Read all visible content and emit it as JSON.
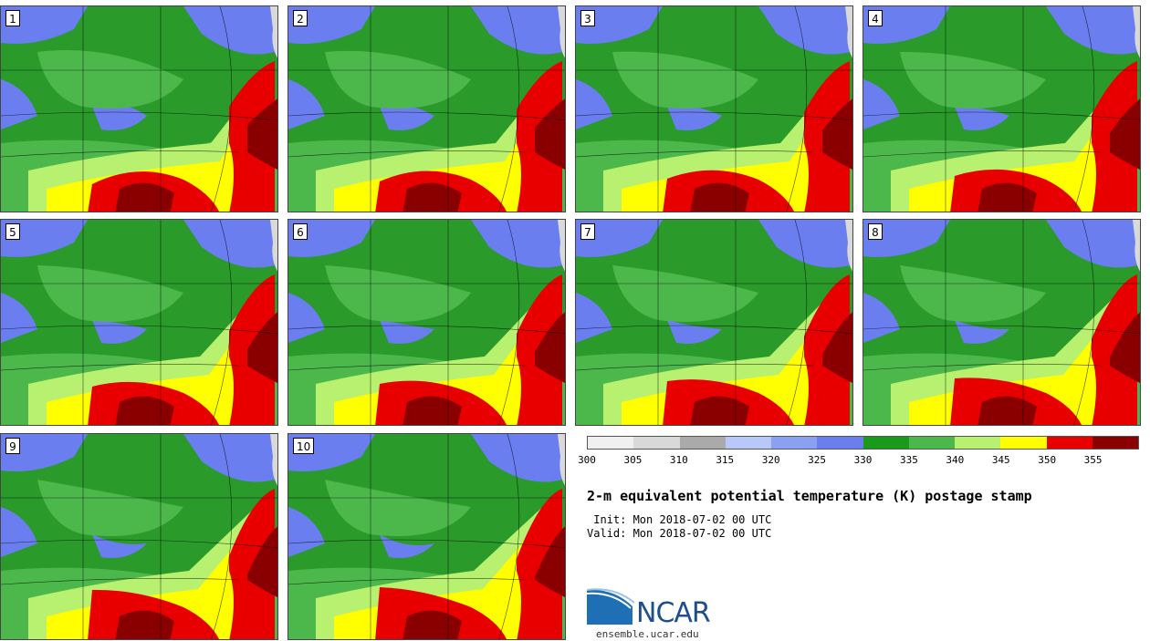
{
  "panels": [
    {
      "label": "1"
    },
    {
      "label": "2"
    },
    {
      "label": "3"
    },
    {
      "label": "4"
    },
    {
      "label": "5"
    },
    {
      "label": "6"
    },
    {
      "label": "7"
    },
    {
      "label": "8"
    },
    {
      "label": "9"
    },
    {
      "label": "10"
    }
  ],
  "colorbar": {
    "colors": [
      "#f0f0f0",
      "#d9d9d9",
      "#aaaaaa",
      "#b8c8f8",
      "#8aa0f0",
      "#6a7ef0",
      "#1a9a1a",
      "#4cb84c",
      "#b8f070",
      "#ffff00",
      "#e80000",
      "#8a0000"
    ],
    "ticks": [
      "300",
      "305",
      "310",
      "315",
      "320",
      "325",
      "330",
      "335",
      "340",
      "345",
      "350",
      "355"
    ]
  },
  "title": "2-m equivalent potential temperature (K) postage stamp",
  "init": " Init: Mon 2018-07-02 00 UTC",
  "valid": "Valid: Mon 2018-07-02 00 UTC",
  "logo": {
    "text": "NCAR",
    "url": "ensemble.ucar.edu"
  }
}
